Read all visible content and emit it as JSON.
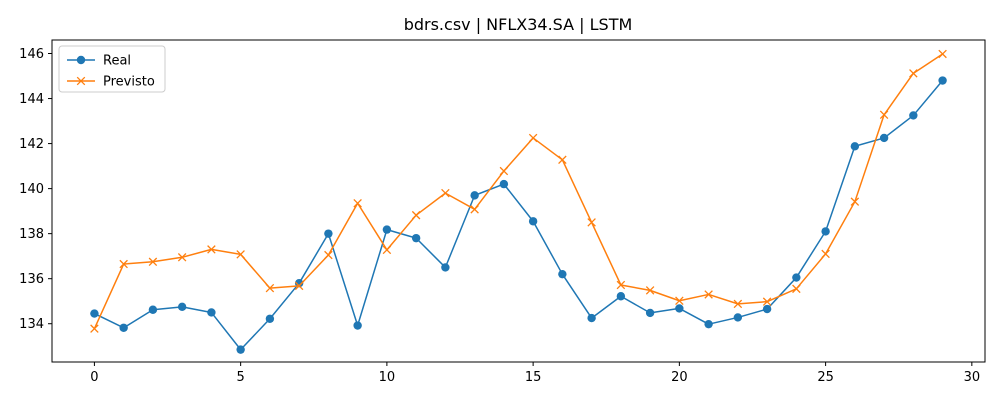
{
  "chart_data": {
    "type": "line",
    "title": "bdrs.csv | NFLX34.SA | LSTM",
    "xlabel": "",
    "ylabel": "",
    "x": [
      0,
      1,
      2,
      3,
      4,
      5,
      6,
      7,
      8,
      9,
      10,
      11,
      12,
      13,
      14,
      15,
      16,
      17,
      18,
      19,
      20,
      21,
      22,
      23,
      24,
      25,
      26,
      27,
      28,
      29
    ],
    "xlim": [
      -1.45,
      30.45
    ],
    "ylim": [
      132.3,
      146.6
    ],
    "xticks": [
      0,
      5,
      10,
      15,
      20,
      25,
      30
    ],
    "yticks": [
      134,
      136,
      138,
      140,
      142,
      144,
      146
    ],
    "grid": false,
    "legend_position": "top-left",
    "series": [
      {
        "name": "Real",
        "color": "#1f77b4",
        "marker": "circle",
        "values": [
          134.45,
          133.82,
          134.62,
          134.75,
          134.5,
          132.85,
          134.22,
          135.8,
          138.0,
          133.92,
          138.18,
          137.8,
          136.5,
          139.7,
          140.2,
          138.55,
          136.2,
          134.25,
          135.22,
          134.48,
          134.68,
          133.98,
          134.28,
          134.65,
          136.05,
          138.1,
          141.88,
          142.25,
          143.25,
          144.8
        ]
      },
      {
        "name": "Previsto",
        "color": "#ff7f0e",
        "marker": "x",
        "values": [
          133.78,
          136.65,
          136.75,
          136.95,
          137.3,
          137.08,
          135.58,
          135.68,
          137.05,
          139.35,
          137.28,
          138.82,
          139.8,
          139.08,
          140.78,
          142.25,
          141.28,
          138.5,
          135.72,
          135.48,
          135.02,
          135.3,
          134.88,
          134.98,
          135.55,
          137.1,
          139.42,
          143.28,
          145.12,
          145.98
        ]
      }
    ]
  }
}
